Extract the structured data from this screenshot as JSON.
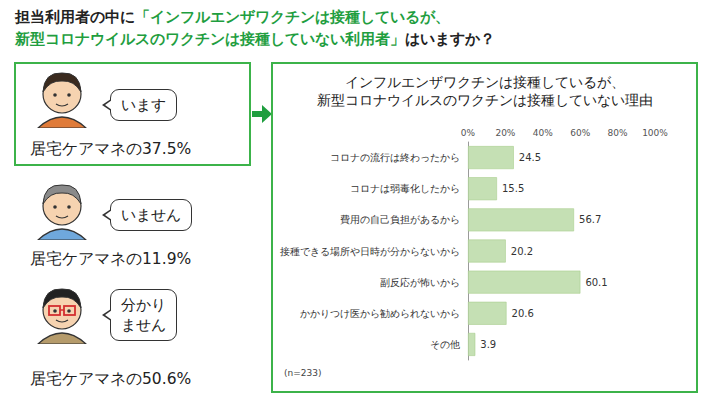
{
  "question": {
    "prefix": "担当利用者の中に",
    "highlight_lines": [
      "「インフルエンザワクチンは接種しているが、",
      "新型コロナウイルスのワクチンは接種していない利用者」"
    ],
    "suffix": "はいますか？"
  },
  "answers": [
    {
      "bubble": [
        "います"
      ],
      "caption": "居宅ケアマネの37.5%"
    },
    {
      "bubble": [
        "いません"
      ],
      "caption": "居宅ケアマネの11.9%"
    },
    {
      "bubble": [
        "分かり",
        "ません"
      ],
      "caption": "居宅ケアマネの50.6%"
    }
  ],
  "chart_data": {
    "type": "bar",
    "orientation": "horizontal",
    "title": "インフルエンザワクチンは接種しているが、\n新型コロナウイルスのワクチンは接種していない理由",
    "categories": [
      "コロナの流行は終わったから",
      "コロナは弱毒化したから",
      "費用の自己負担があるから",
      "接種できる場所や日時が分からないから",
      "副反応が怖いから",
      "かかりつけ医から勧められないから",
      "その他"
    ],
    "values": [
      24.5,
      15.5,
      56.7,
      20.2,
      60.1,
      20.6,
      3.9
    ],
    "color": "#c5e0b4",
    "xlim": [
      0,
      100
    ],
    "xticks": [
      {
        "value": 0,
        "label": "0%"
      },
      {
        "value": 20,
        "label": "20%"
      },
      {
        "value": 40,
        "label": "40%"
      },
      {
        "value": 60,
        "label": "60%"
      },
      {
        "value": 80,
        "label": "80%"
      },
      {
        "value": 100,
        "label": "100%"
      }
    ],
    "grid": false,
    "data_labels": true,
    "annotations": [
      "(n=233)"
    ]
  }
}
